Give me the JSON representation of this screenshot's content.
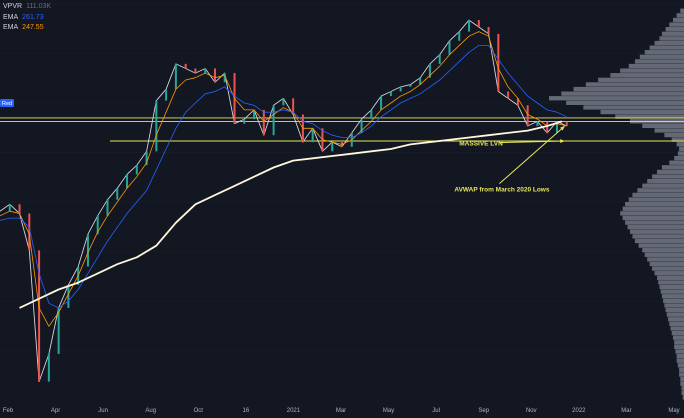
{
  "legend": {
    "items": [
      {
        "name": "VPVR",
        "value": "111.03K",
        "color": "#6a6d78"
      },
      {
        "name": "EMA",
        "value": "261.73",
        "color": "#2962ff"
      },
      {
        "name": "EMA",
        "value": "247.55",
        "color": "#ff9800"
      }
    ]
  },
  "chart_data": {
    "type": "line",
    "title": "",
    "x_ticks": [
      "Feb",
      "Apr",
      "Jun",
      "Aug",
      "Oct",
      "16",
      "2021",
      "Mar",
      "May",
      "Jul",
      "Sep",
      "Nov",
      "2022",
      "Mar",
      "May"
    ],
    "x": [
      0,
      10,
      20,
      30,
      40,
      50,
      60,
      70,
      80,
      90,
      100,
      110,
      120,
      130,
      140,
      150,
      160,
      170,
      180,
      190,
      200,
      210,
      220,
      230,
      240,
      250,
      260,
      270,
      280,
      290,
      300,
      310,
      320,
      330,
      340,
      350,
      360,
      370,
      380,
      390,
      400,
      410,
      420,
      430,
      440,
      450,
      460,
      470,
      480,
      490,
      500,
      510,
      520,
      530,
      540,
      550,
      560,
      570,
      580
    ],
    "series": [
      {
        "name": "",
        "role": "price",
        "color": "#d1d4dc",
        "values": [
          242,
          245,
          241,
          225,
          168,
          180,
          200,
          210,
          218,
          232,
          240,
          247,
          252,
          258,
          262,
          268,
          290,
          295,
          306,
          304,
          302,
          304,
          298,
          302,
          280,
          282,
          286,
          275,
          288,
          291,
          284,
          272,
          278,
          268,
          272,
          270,
          276,
          282,
          286,
          292,
          294,
          296,
          297,
          300,
          306,
          310,
          316,
          320,
          325,
          322,
          319,
          294,
          291,
          288,
          279,
          281,
          276,
          281,
          279
        ]
      },
      {
        "name": "EMA",
        "role": "ema-fast",
        "color": "#ff9800",
        "values": [
          240,
          242,
          241,
          232,
          200,
          192,
          198,
          206,
          214,
          224,
          233,
          240,
          246,
          252,
          257,
          263,
          275,
          285,
          295,
          299,
          300,
          302,
          300,
          301,
          291,
          286,
          286,
          281,
          284,
          287,
          285,
          278,
          278,
          273,
          272,
          271,
          273,
          277,
          281,
          286,
          289,
          292,
          294,
          297,
          301,
          305,
          310,
          314,
          318,
          320,
          318,
          304,
          296,
          291,
          284,
          282,
          279,
          280,
          279
        ]
      },
      {
        "name": "EMA",
        "role": "ema-slow",
        "color": "#2962ff",
        "values": [
          238,
          239,
          239,
          235,
          215,
          202,
          200,
          203,
          208,
          215,
          222,
          229,
          235,
          241,
          246,
          251,
          260,
          269,
          278,
          285,
          289,
          293,
          294,
          296,
          292,
          289,
          288,
          285,
          285,
          286,
          285,
          281,
          280,
          277,
          275,
          274,
          274,
          276,
          279,
          283,
          286,
          289,
          291,
          293,
          296,
          299,
          303,
          307,
          311,
          314,
          314,
          308,
          302,
          297,
          292,
          289,
          286,
          285,
          283
        ]
      },
      {
        "name": "",
        "role": "avwap",
        "color": "#fff8dc",
        "x": [
          20,
          40,
          60,
          80,
          100,
          120,
          140,
          160,
          180,
          200,
          220,
          240,
          260,
          280,
          300,
          320,
          340,
          360,
          380,
          400,
          420,
          440,
          460,
          480,
          500,
          520,
          540,
          560,
          575
        ],
        "values": [
          200,
          204,
          208,
          211,
          215,
          219,
          222,
          227,
          237,
          245,
          249,
          253,
          257,
          261,
          264,
          265,
          266,
          267,
          268,
          269,
          271,
          272,
          273,
          274,
          275,
          276,
          277,
          279,
          281
        ]
      }
    ],
    "horizontal_levels": [
      {
        "value": 282.5,
        "color": "#e6e65a"
      },
      {
        "value": 281.0,
        "color": "#e6e65a"
      },
      {
        "value": 272.5,
        "color": "#e6e65a"
      }
    ],
    "price_badge": {
      "label": "Red",
      "value": 289
    },
    "annotations": [
      {
        "text": "MASSIVE LVN",
        "x": 470,
        "y": 270.5,
        "target": {
          "x": 578,
          "y": 272.5
        },
        "color": "#e6e65a"
      },
      {
        "text": "AVWAP from March 2020 Lows",
        "x": 465,
        "y": 250.5,
        "target": {
          "x": 578,
          "y": 279
        },
        "color": "#e6e65a"
      }
    ],
    "volume_profile": {
      "price_min": 160,
      "price_max": 332,
      "step": 2,
      "volumes": [
        1,
        2,
        2,
        3,
        3,
        4,
        4,
        5,
        6,
        6,
        7,
        8,
        8,
        9,
        10,
        11,
        12,
        13,
        14,
        15,
        16,
        17,
        18,
        19,
        20,
        21,
        22,
        24,
        26,
        28,
        30,
        32,
        34,
        37,
        40,
        42,
        44,
        46,
        48,
        50,
        52,
        50,
        48,
        45,
        42,
        38,
        34,
        30,
        26,
        22,
        18,
        12,
        8,
        5,
        4,
        6,
        10,
        16,
        24,
        34,
        44,
        56,
        68,
        82,
        96,
        110,
        100,
        90,
        80,
        70,
        60,
        52,
        45,
        40,
        36,
        32,
        28,
        24,
        20,
        18,
        15,
        12,
        9,
        6,
        3
      ]
    },
    "ylim": [
      160,
      332
    ],
    "xlim": [
      0,
      700
    ]
  }
}
